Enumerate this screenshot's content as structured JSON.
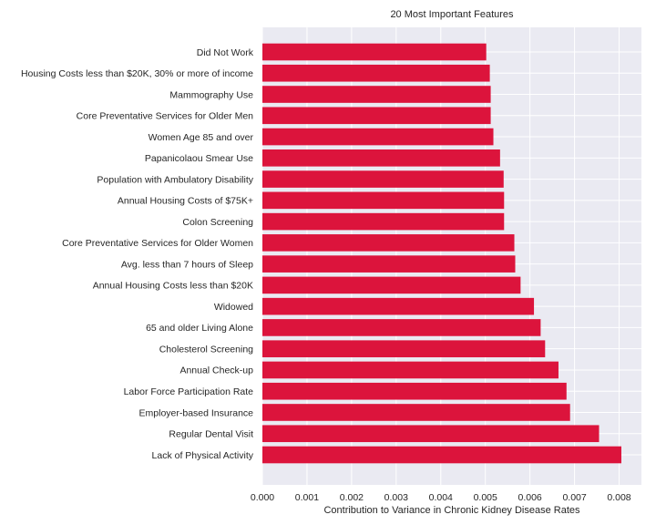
{
  "chart_data": {
    "type": "bar",
    "orientation": "horizontal",
    "title": "20 Most Important Features",
    "xlabel": "Contribution to Variance in Chronic Kidney Disease Rates",
    "ylabel": "",
    "xlim": [
      0,
      0.0085
    ],
    "x_ticks": [
      "0.000",
      "0.001",
      "0.002",
      "0.003",
      "0.004",
      "0.005",
      "0.006",
      "0.007",
      "0.008"
    ],
    "grid": true,
    "bar_color": "#dc143c",
    "background_color": "#eaeaf2",
    "grid_color": "#ffffff",
    "categories": [
      "Did Not Work",
      "Housing Costs less than $20K, 30% or more of income",
      "Mammography Use",
      "Core Preventative Services for Older Men",
      "Women Age 85 and over",
      "Papanicolaou Smear Use",
      "Population with Ambulatory Disability",
      "Annual Housing Costs of $75K+",
      "Colon Screening",
      "Core Preventative Services for Older Women",
      "Avg. less than 7 hours of Sleep",
      "Annual Housing Costs less than $20K",
      "Widowed",
      "65 and older Living Alone",
      "Cholesterol Screening",
      "Annual Check-up",
      "Labor Force Participation Rate",
      "Employer-based Insurance",
      "Regular Dental Visit",
      "Lack of Physical Activity"
    ],
    "values": [
      0.00502,
      0.0051,
      0.00512,
      0.00512,
      0.00518,
      0.00533,
      0.00541,
      0.00542,
      0.00542,
      0.00565,
      0.00567,
      0.00579,
      0.00609,
      0.00624,
      0.00634,
      0.00664,
      0.00682,
      0.0069,
      0.00755,
      0.00805
    ]
  }
}
